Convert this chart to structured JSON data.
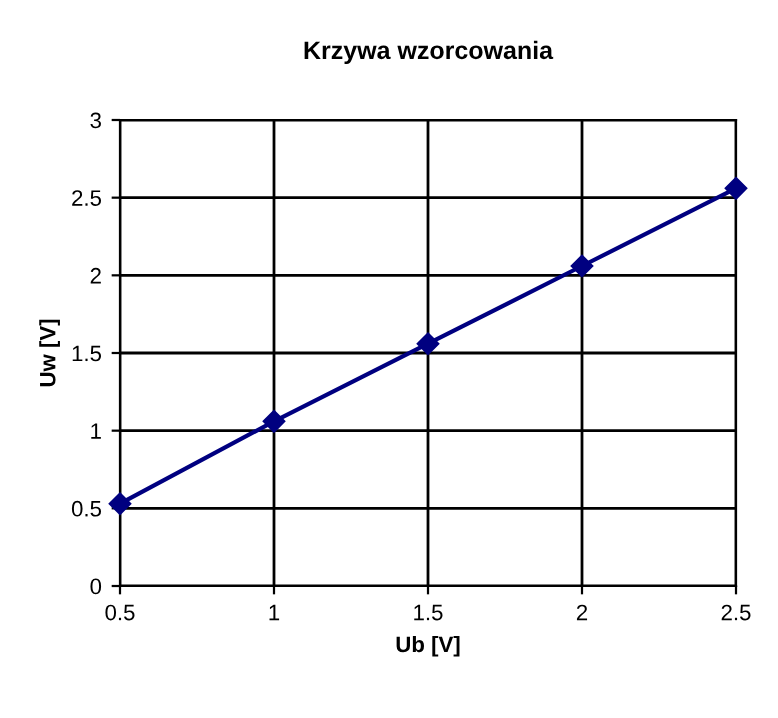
{
  "chart_data": {
    "type": "line",
    "title": "Krzywa wzorcowania",
    "xlabel": "Ub [V]",
    "ylabel": "Uw [V]",
    "x": [
      0.5,
      1,
      1.5,
      2,
      2.5
    ],
    "series": [
      {
        "color": "#000080",
        "values": [
          0.53,
          1.06,
          1.56,
          2.06,
          2.56
        ]
      }
    ],
    "xlim": [
      0.5,
      2.5
    ],
    "xticks": [
      0.5,
      1,
      1.5,
      2,
      2.5
    ],
    "ylim": [
      0,
      3
    ],
    "yticks": [
      0,
      0.5,
      1,
      1.5,
      2,
      2.5,
      3
    ],
    "grid": true,
    "marker": "diamond",
    "line_style": "solid",
    "legend": false
  }
}
